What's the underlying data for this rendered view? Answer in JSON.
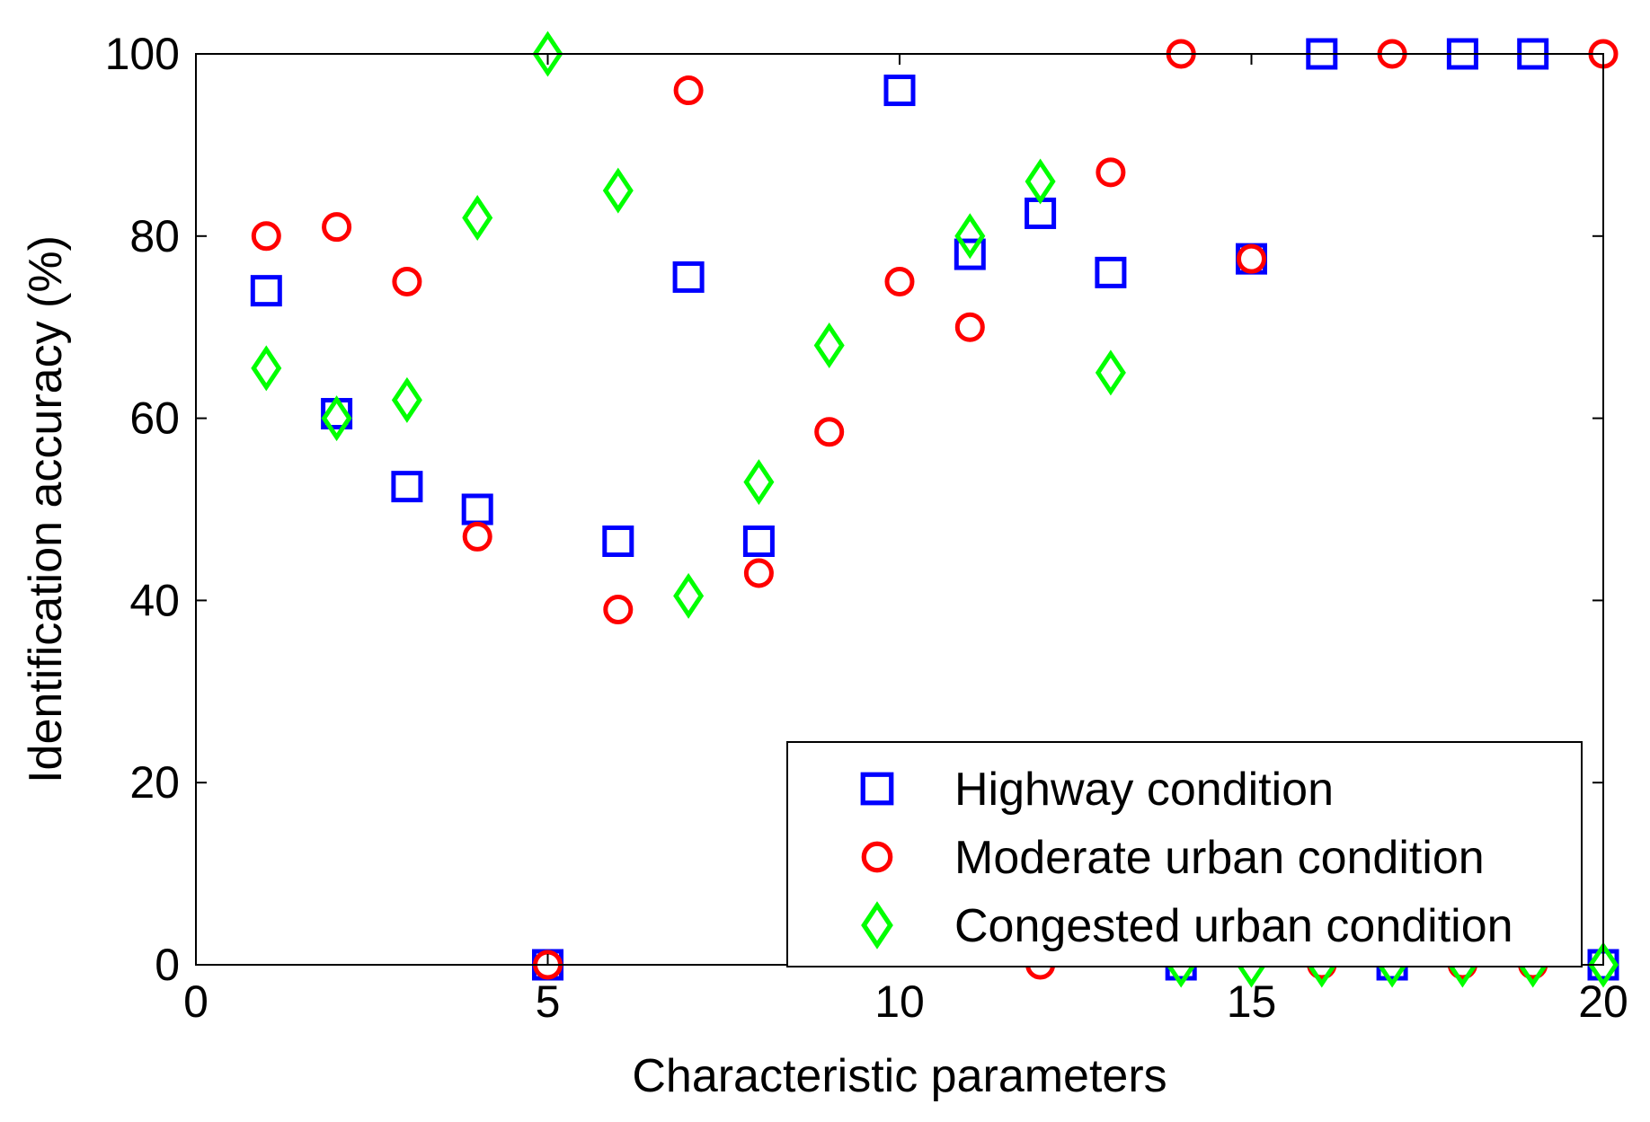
{
  "chart_data": {
    "type": "scatter",
    "title": "",
    "xlabel": "Characteristic parameters",
    "ylabel": "Identification accuracy (%)",
    "xlim": [
      0,
      20
    ],
    "ylim": [
      0,
      100
    ],
    "xticks": [
      0,
      5,
      10,
      15,
      20
    ],
    "yticks": [
      0,
      20,
      40,
      60,
      80,
      100
    ],
    "grid": false,
    "legend_position": "bottom-right",
    "series": [
      {
        "name": "Highway condition",
        "marker": "square",
        "color": "#0000ff",
        "x": [
          1,
          2,
          3,
          4,
          5,
          6,
          7,
          8,
          10,
          11,
          12,
          13,
          14,
          15,
          16,
          17,
          18,
          19,
          20
        ],
        "y": [
          74,
          60.5,
          52.5,
          50,
          0,
          46.5,
          75.5,
          46.5,
          96,
          78,
          82.5,
          76,
          0,
          77.5,
          100,
          0,
          100,
          100,
          0
        ]
      },
      {
        "name": "Moderate urban condition",
        "marker": "circle",
        "color": "#ff0000",
        "x": [
          1,
          2,
          3,
          4,
          5,
          6,
          7,
          8,
          9,
          10,
          11,
          12,
          13,
          14,
          15,
          16,
          17,
          18,
          19,
          20
        ],
        "y": [
          80,
          81,
          75,
          47,
          0,
          39,
          96,
          43,
          58.5,
          75,
          70,
          0,
          87,
          100,
          77.5,
          0,
          100,
          0,
          0,
          100
        ]
      },
      {
        "name": "Congested urban condition",
        "marker": "diamond",
        "color": "#00ff00",
        "x": [
          1,
          2,
          3,
          4,
          5,
          6,
          7,
          8,
          9,
          11,
          12,
          13,
          14,
          15,
          16,
          17,
          18,
          19,
          20
        ],
        "y": [
          65.5,
          60,
          62,
          82,
          100,
          85,
          40.5,
          53,
          68,
          80,
          86,
          65,
          0,
          0,
          0,
          0,
          0,
          0,
          0
        ]
      }
    ]
  }
}
